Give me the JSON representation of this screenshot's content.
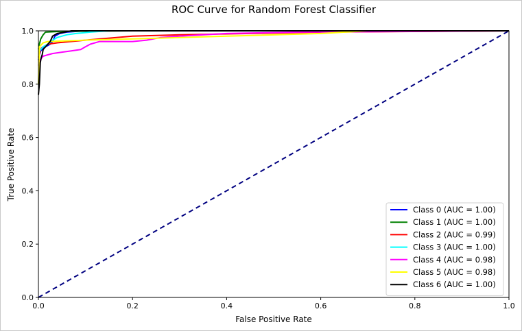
{
  "chart_data": {
    "type": "line",
    "title": "ROC Curve for Random Forest Classifier",
    "xlabel": "False Positive Rate",
    "ylabel": "True Positive Rate",
    "xlim": [
      0.0,
      1.0
    ],
    "ylim": [
      0.0,
      1.0
    ],
    "xticks": [
      "0.0",
      "0.2",
      "0.4",
      "0.6",
      "0.8",
      "1.0"
    ],
    "yticks": [
      "0.0",
      "0.2",
      "0.4",
      "0.6",
      "0.8",
      "1.0"
    ],
    "grid": false,
    "legend_position": "lower right",
    "diagonal": {
      "x": [
        0,
        1
      ],
      "y": [
        0,
        1
      ],
      "color": "#000080",
      "style": "dashed"
    },
    "series": [
      {
        "name": "Class 0 (AUC = 1.00)",
        "color": "#0000ff",
        "x": [
          0,
          0.002,
          0.005,
          0.01,
          0.015,
          0.02,
          0.025,
          0.03,
          0.035,
          0.045,
          0.06,
          0.1,
          1.0
        ],
        "y": [
          0.89,
          0.91,
          0.925,
          0.935,
          0.94,
          0.945,
          0.95,
          0.96,
          0.98,
          0.99,
          0.995,
          1.0,
          1.0
        ]
      },
      {
        "name": "Class 1 (AUC = 1.00)",
        "color": "#008000",
        "x": [
          0,
          0.002,
          0.005,
          0.01,
          0.015,
          0.05,
          0.2,
          1.0
        ],
        "y": [
          0.93,
          0.95,
          0.97,
          0.985,
          0.995,
          0.998,
          1.0,
          1.0
        ]
      },
      {
        "name": "Class 2 (AUC = 0.99)",
        "color": "#ff0000",
        "x": [
          0,
          0.003,
          0.006,
          0.01,
          0.02,
          0.04,
          0.1,
          0.2,
          0.3,
          0.45,
          0.6,
          1.0
        ],
        "y": [
          0.9,
          0.92,
          0.935,
          0.94,
          0.95,
          0.955,
          0.965,
          0.98,
          0.985,
          0.99,
          0.995,
          1.0
        ]
      },
      {
        "name": "Class 3 (AUC = 1.00)",
        "color": "#00ffff",
        "x": [
          0,
          0.005,
          0.01,
          0.02,
          0.03,
          0.04,
          0.06,
          0.08,
          0.11,
          0.15,
          1.0
        ],
        "y": [
          0.92,
          0.93,
          0.94,
          0.95,
          0.965,
          0.975,
          0.985,
          0.99,
          0.995,
          1.0,
          1.0
        ]
      },
      {
        "name": "Class 4 (AUC = 0.98)",
        "color": "#ff00ff",
        "x": [
          0,
          0.003,
          0.01,
          0.02,
          0.03,
          0.05,
          0.07,
          0.09,
          0.1,
          0.11,
          0.13,
          0.2,
          0.23,
          0.26,
          0.3,
          0.4,
          0.55,
          1.0
        ],
        "y": [
          0.87,
          0.89,
          0.905,
          0.91,
          0.915,
          0.92,
          0.925,
          0.93,
          0.94,
          0.95,
          0.96,
          0.96,
          0.965,
          0.975,
          0.98,
          0.99,
          0.995,
          1.0
        ]
      },
      {
        "name": "Class 5 (AUC = 0.98)",
        "color": "#ffff00",
        "x": [
          0,
          0.002,
          0.01,
          0.02,
          0.1,
          0.2,
          0.4,
          0.6,
          0.7,
          1.0
        ],
        "y": [
          0.8,
          0.94,
          0.955,
          0.96,
          0.965,
          0.97,
          0.98,
          0.99,
          1.0,
          1.0
        ]
      },
      {
        "name": "Class 6 (AUC = 1.00)",
        "color": "#000000",
        "x": [
          0,
          0.002,
          0.004,
          0.006,
          0.008,
          0.01,
          0.015,
          0.02,
          0.025,
          0.03,
          0.04,
          0.07,
          1.0
        ],
        "y": [
          0.76,
          0.8,
          0.88,
          0.9,
          0.91,
          0.93,
          0.94,
          0.95,
          0.96,
          0.98,
          0.99,
          1.0,
          1.0
        ]
      }
    ]
  }
}
